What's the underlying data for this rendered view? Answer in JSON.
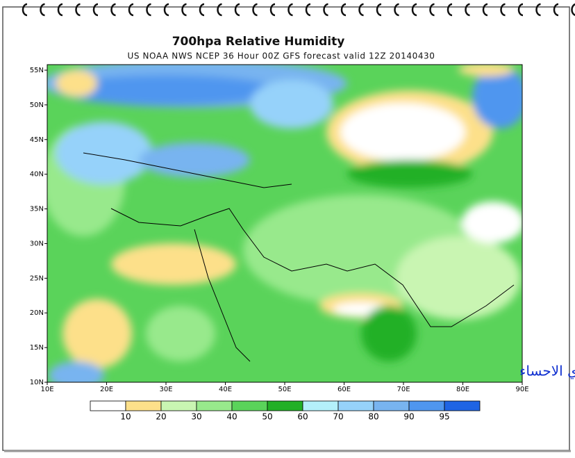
{
  "header": {
    "title": "700hpa Relative Humidity",
    "subtitle": "US NOAA NWS NCEP 36 Hour 00Z GFS forecast valid 12Z 20140430"
  },
  "map": {
    "lat_labels": [
      "55N",
      "50N",
      "45N",
      "40N",
      "35N",
      "30N",
      "25N",
      "20N",
      "15N",
      "10N"
    ],
    "lon_labels": [
      "10E",
      "20E",
      "30E",
      "40E",
      "50E",
      "60E",
      "70E",
      "80E",
      "90E"
    ],
    "watermark": "براري الاحساء"
  },
  "legend": {
    "colors": [
      "#ffffff",
      "#fde08a",
      "#c9f5b2",
      "#98e98c",
      "#5ad35a",
      "#22b026",
      "#b4f0fa",
      "#96d2fa",
      "#78b4f0",
      "#4f96ef",
      "#1f64e4"
    ],
    "labels": [
      "10",
      "20",
      "30",
      "40",
      "50",
      "60",
      "70",
      "80",
      "90",
      "95"
    ]
  }
}
